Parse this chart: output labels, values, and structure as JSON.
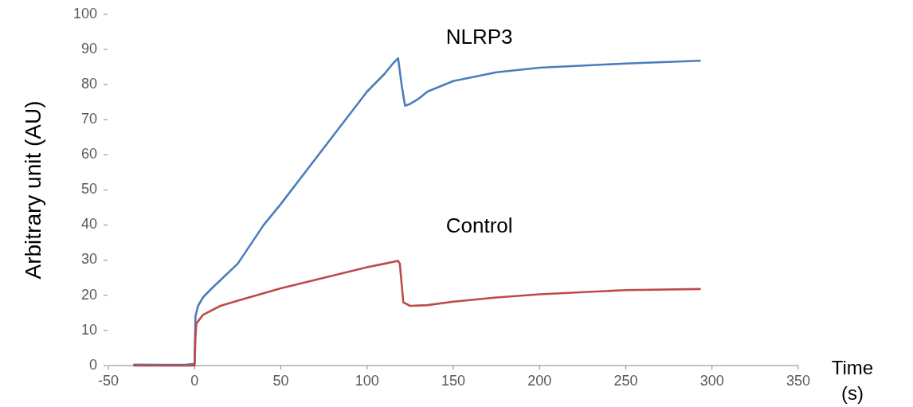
{
  "chart_data": {
    "type": "line",
    "xlabel": "Time (s)",
    "ylabel": "Arbitrary unit (AU)",
    "xlim": [
      -50,
      350
    ],
    "xticks": [
      -50,
      0,
      50,
      100,
      150,
      200,
      250,
      300,
      350
    ],
    "ylim": [
      0,
      100
    ],
    "yticks": [
      0,
      10,
      20,
      30,
      40,
      50,
      60,
      70,
      80,
      90,
      100
    ],
    "grid": false,
    "marker": "none",
    "line_style": "solid",
    "series": [
      {
        "name": "NLRP3",
        "color": "#4a7ebb",
        "x": [
          -35,
          -20,
          -5,
          0,
          0.5,
          2,
          5,
          10,
          25,
          40,
          50,
          75,
          100,
          110,
          115,
          118,
          120,
          122,
          125,
          130,
          135,
          150,
          175,
          200,
          250,
          293
        ],
        "values": [
          0.3,
          0.2,
          0.3,
          0.5,
          14,
          17,
          19.5,
          22,
          29,
          40,
          46,
          62,
          78,
          83,
          86,
          87.5,
          80,
          74,
          74.5,
          76,
          78,
          81,
          83.5,
          84.8,
          86,
          86.8
        ]
      },
      {
        "name": "Control",
        "color": "#be4b48",
        "x": [
          -35,
          -20,
          -5,
          0,
          0.5,
          1,
          5,
          15,
          25,
          50,
          75,
          100,
          110,
          118,
          119,
          121,
          125,
          135,
          150,
          175,
          200,
          250,
          293
        ],
        "values": [
          0,
          0,
          0,
          0,
          8,
          12,
          14.5,
          17,
          18.5,
          22,
          25,
          28,
          29,
          29.8,
          29,
          18,
          17,
          17.2,
          18.2,
          19.4,
          20.3,
          21.5,
          21.8
        ]
      }
    ]
  }
}
